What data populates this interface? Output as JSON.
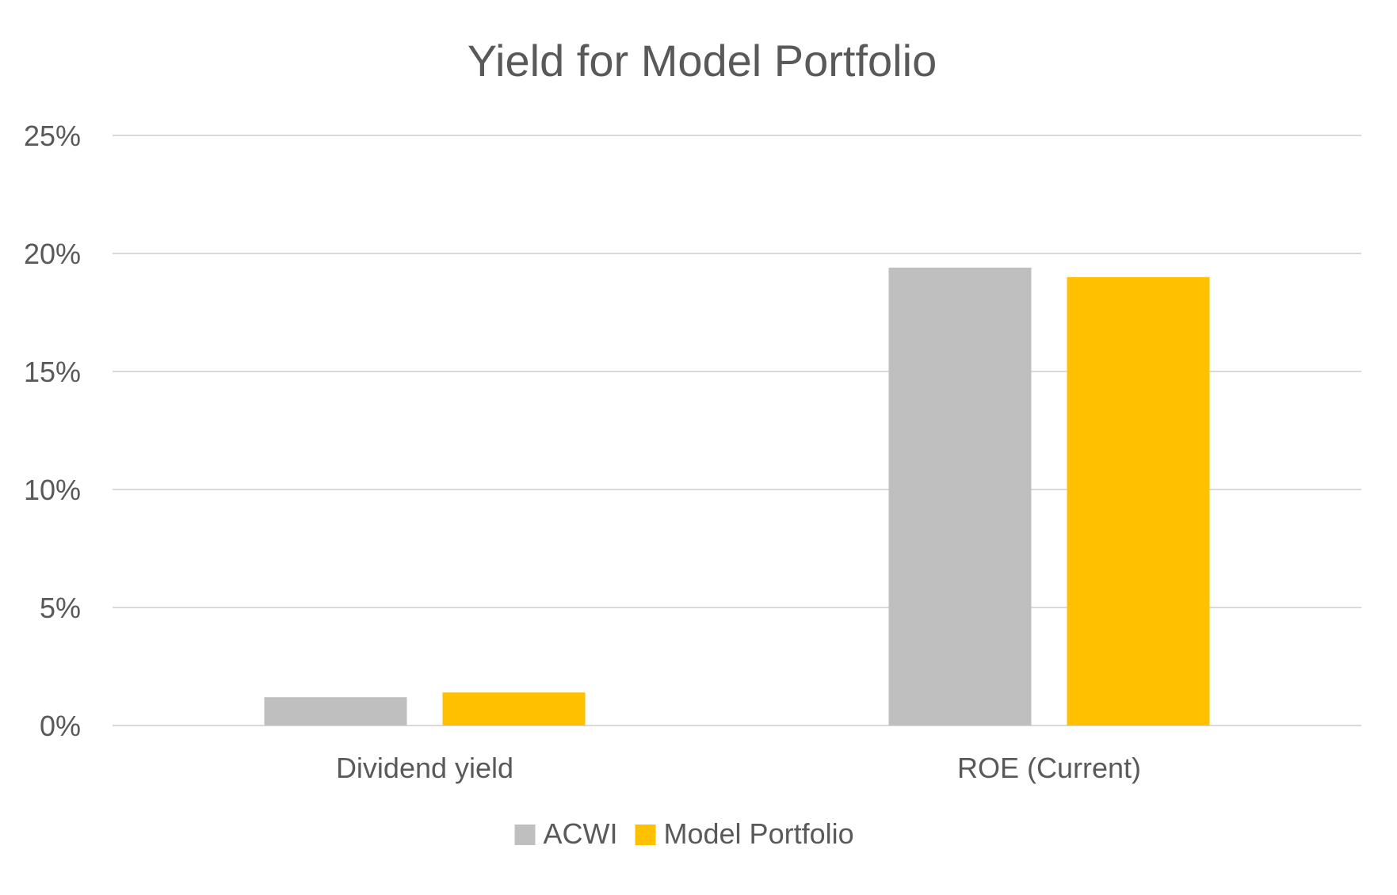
{
  "chart_data": {
    "type": "bar",
    "title": "Yield for Model Portfolio",
    "categories": [
      "Dividend yield",
      "ROE (Current)"
    ],
    "series": [
      {
        "name": "ACWI",
        "values": [
          1.2,
          19.4
        ],
        "color": "#bfbfbf"
      },
      {
        "name": "Model Portfolio",
        "values": [
          1.4,
          19.0
        ],
        "color": "#ffc000"
      }
    ],
    "ylim": [
      0,
      25
    ],
    "y_ticks": [
      0,
      5,
      10,
      15,
      20,
      25
    ],
    "y_tick_labels": [
      "0%",
      "5%",
      "10%",
      "15%",
      "20%",
      "25%"
    ],
    "xlabel": "",
    "ylabel": "",
    "grid": true,
    "gridline_color": "#d9d9d9",
    "legend_position": "bottom"
  }
}
